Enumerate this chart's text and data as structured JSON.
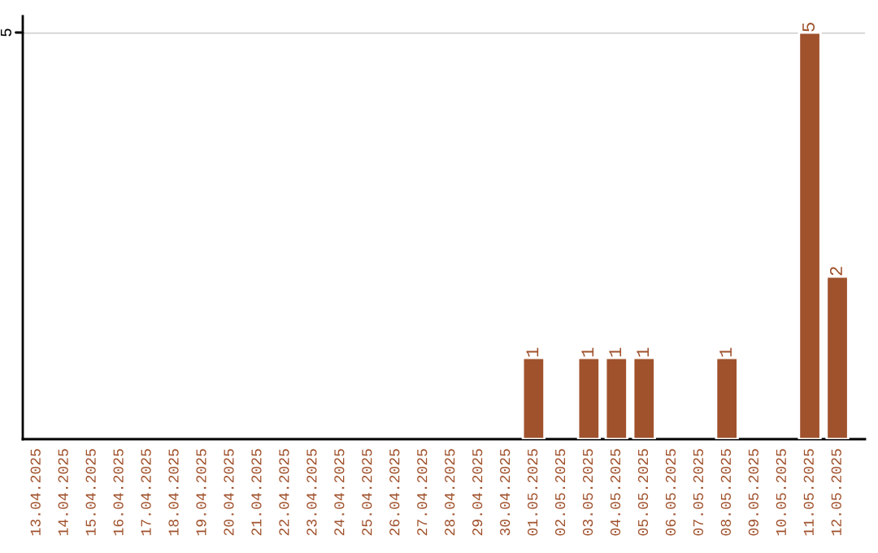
{
  "chart_data": {
    "type": "bar",
    "categories": [
      "13.04.2025",
      "14.04.2025",
      "15.04.2025",
      "16.04.2025",
      "17.04.2025",
      "18.04.2025",
      "19.04.2025",
      "20.04.2025",
      "21.04.2025",
      "22.04.2025",
      "23.04.2025",
      "24.04.2025",
      "25.04.2025",
      "26.04.2025",
      "27.04.2025",
      "28.04.2025",
      "29.04.2025",
      "30.04.2025",
      "01.05.2025",
      "02.05.2025",
      "03.05.2025",
      "04.05.2025",
      "05.05.2025",
      "06.05.2025",
      "07.05.2025",
      "08.05.2025",
      "09.05.2025",
      "10.05.2025",
      "11.05.2025",
      "12.05.2025"
    ],
    "values": [
      null,
      null,
      null,
      null,
      null,
      null,
      null,
      null,
      null,
      null,
      null,
      null,
      null,
      null,
      null,
      null,
      null,
      null,
      1,
      null,
      1,
      1,
      1,
      null,
      null,
      1,
      null,
      null,
      5,
      2
    ],
    "value_labels": [
      null,
      null,
      null,
      null,
      null,
      null,
      null,
      null,
      null,
      null,
      null,
      null,
      null,
      null,
      null,
      null,
      null,
      null,
      "1",
      null,
      "1",
      "1",
      "1",
      null,
      null,
      "1",
      null,
      null,
      "5",
      "2"
    ],
    "color": "#a0522d",
    "ylim": [
      0,
      5
    ],
    "ref_lines": [
      {
        "axis": "y",
        "value": 5,
        "label": "5",
        "color": "#cccccc"
      }
    ]
  }
}
